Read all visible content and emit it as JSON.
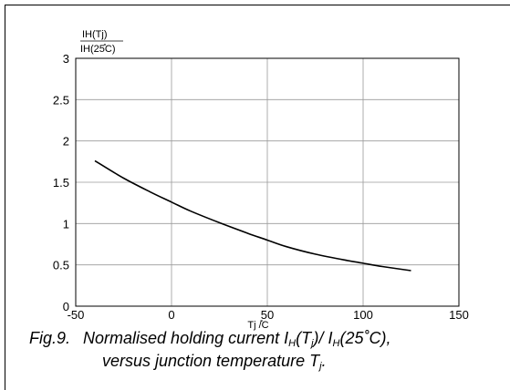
{
  "chart_data": {
    "type": "line",
    "ylabel_num": "IH(Tj)",
    "ylabel_den": "IH(25̊C)",
    "xlabel": "Tj /̊C",
    "xlim": [
      -50,
      150
    ],
    "ylim": [
      0,
      3
    ],
    "xticks": [
      "-50",
      "0",
      "50",
      "100",
      "150"
    ],
    "yticks": [
      "0",
      "0.5",
      "1",
      "1.5",
      "2",
      "2.5",
      "3"
    ],
    "grid": true,
    "series": [
      {
        "x": [
          -40,
          -25,
          -10,
          0,
          10,
          25,
          40,
          50,
          60,
          75,
          90,
          100,
          110,
          125
        ],
        "y": [
          1.76,
          1.55,
          1.37,
          1.26,
          1.15,
          1.01,
          0.88,
          0.8,
          0.72,
          0.63,
          0.56,
          0.52,
          0.48,
          0.43
        ]
      }
    ]
  },
  "caption": {
    "fig_label": "Fig.9.",
    "line1_a": "Normalised holding current I",
    "line1_sub1": "H",
    "line1_b": "(T",
    "line1_sub2": "j",
    "line1_c": ")/ I",
    "line1_sub3": "H",
    "line1_d": "(25˚C),",
    "line2_a": "versus junction temperature T",
    "line2_sub": "j",
    "line2_b": "."
  }
}
